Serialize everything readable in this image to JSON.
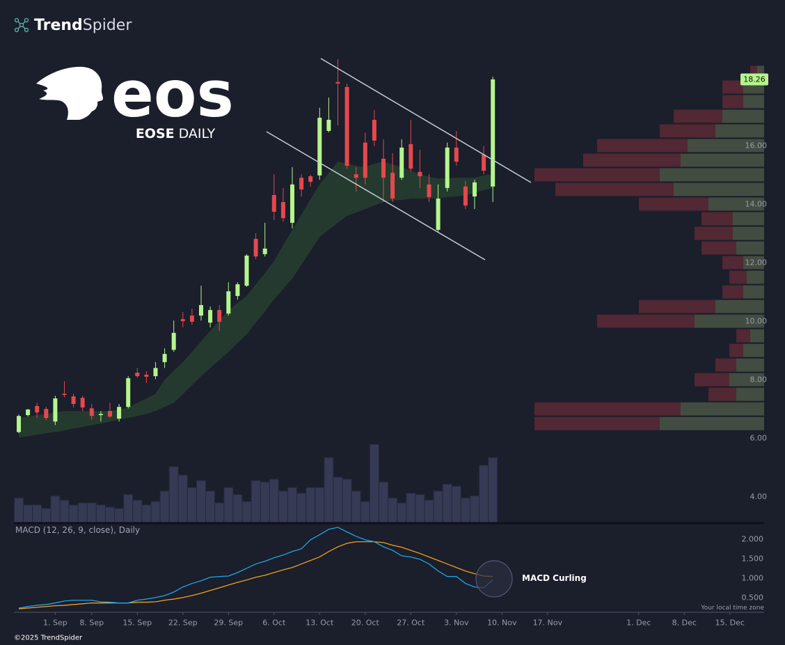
{
  "chart_data": {
    "type": "candlestick",
    "brand": {
      "bold": "Trend",
      "light": "Spider"
    },
    "logo": "eos",
    "ticker": "EOSE",
    "period": "DAILY",
    "categories": [
      null,
      null,
      null,
      null,
      "1. Sep",
      null,
      null,
      null,
      "8. Sep",
      null,
      null,
      null,
      null,
      "15. Sep",
      null,
      null,
      null,
      null,
      "22. Sep",
      null,
      null,
      null,
      null,
      "29. Sep",
      null,
      null,
      null,
      null,
      "6. Oct",
      null,
      null,
      null,
      null,
      "13. Oct",
      null,
      null,
      null,
      null,
      "20. Oct",
      null,
      null,
      null,
      null,
      "27. Oct",
      null,
      null,
      null,
      null,
      "3. Nov",
      null,
      null,
      null,
      null,
      "10. Nov",
      null,
      null,
      null,
      null,
      "17. Nov",
      null,
      null,
      null,
      null,
      null,
      null,
      null,
      null,
      null,
      "1. Dec",
      null,
      null,
      null,
      null,
      "8. Dec",
      null,
      null,
      null,
      null,
      "15. Dec",
      null,
      null
    ],
    "open": [
      6.21,
      6.79,
      7.1,
      7.0,
      6.57,
      7.52,
      7.43,
      7.38,
      7.02,
      6.79,
      6.93,
      6.67,
      7.07,
      8.24,
      8.17,
      8.12,
      8.6,
      9.02,
      10.07,
      10.19,
      10.19,
      9.95,
      10.38,
      10.26,
      10.86,
      11.21,
      12.81,
      12.29,
      14.31,
      14.07,
      13.36,
      14.9,
      14.95,
      14.98,
      16.5,
      18.17,
      18.0,
      15.02,
      16.1,
      16.88,
      15.55,
      15.07,
      14.9,
      16.05,
      15.1,
      14.67,
      13.12,
      14.55,
      15.93,
      14.6,
      14.26,
      15.69,
      14.6,
      null,
      null,
      null,
      null,
      null,
      null,
      null,
      null,
      null,
      null,
      null,
      null,
      null,
      null,
      null,
      null,
      null,
      null,
      null,
      null,
      null,
      null,
      null,
      null,
      null,
      null,
      null,
      null
    ],
    "high": [
      6.81,
      7.0,
      7.21,
      7.07,
      7.45,
      7.95,
      7.52,
      7.45,
      7.17,
      6.93,
      7.21,
      7.17,
      8.12,
      8.4,
      8.29,
      8.6,
      9.07,
      10.02,
      10.31,
      10.43,
      11.21,
      10.5,
      10.55,
      11.33,
      11.33,
      12.29,
      13.0,
      13.36,
      15.02,
      14.55,
      15.26,
      15.02,
      15.0,
      17.29,
      17.64,
      18.95,
      18.12,
      15.26,
      16.45,
      17.21,
      16.21,
      15.74,
      16.21,
      16.88,
      15.86,
      15.02,
      14.67,
      16.1,
      16.5,
      14.79,
      14.83,
      15.98,
      18.35,
      null,
      null,
      null,
      null,
      null,
      null,
      null,
      null,
      null,
      null,
      null,
      null,
      null,
      null,
      null,
      null,
      null,
      null,
      null,
      null,
      null,
      null,
      null,
      null,
      null,
      null,
      null,
      null
    ],
    "low": [
      6.17,
      6.74,
      6.69,
      6.62,
      6.45,
      7.4,
      7.05,
      6.93,
      6.64,
      6.57,
      6.69,
      6.57,
      7.02,
      8.07,
      7.88,
      8.02,
      8.4,
      8.95,
      9.79,
      9.88,
      10.02,
      9.79,
      9.67,
      10.19,
      10.74,
      11.17,
      12.12,
      12.21,
      13.45,
      13.4,
      13.17,
      14.26,
      14.6,
      14.83,
      16.45,
      16.69,
      15.21,
      14.43,
      14.67,
      15.98,
      14.07,
      14.07,
      14.83,
      15.12,
      14.55,
      14.07,
      13.05,
      14.43,
      15.31,
      13.83,
      13.83,
      15.02,
      14.07,
      null,
      null,
      null,
      null,
      null,
      null,
      null,
      null,
      null,
      null,
      null,
      null,
      null,
      null,
      null,
      null,
      null,
      null,
      null,
      null,
      null,
      null,
      null,
      null,
      null,
      null,
      null,
      null
    ],
    "close": [
      6.76,
      6.98,
      6.88,
      6.69,
      7.36,
      7.48,
      7.17,
      7.05,
      6.76,
      6.83,
      6.74,
      7.07,
      8.05,
      8.12,
      8.1,
      8.4,
      8.88,
      9.6,
      10.0,
      9.98,
      10.55,
      10.38,
      9.98,
      11.02,
      11.26,
      12.24,
      12.21,
      12.48,
      13.74,
      13.52,
      14.67,
      14.5,
      14.76,
      16.95,
      16.88,
      18.12,
      15.31,
      14.9,
      14.9,
      16.17,
      14.9,
      14.19,
      15.93,
      15.21,
      14.95,
      14.24,
      14.19,
      15.93,
      15.45,
      13.95,
      14.74,
      15.14,
      18.26,
      null,
      null,
      null,
      null,
      null,
      null,
      null,
      null,
      null,
      null,
      null,
      null,
      null,
      null,
      null,
      null,
      null,
      null,
      null,
      null,
      null,
      null,
      null,
      null,
      null,
      null,
      null,
      null
    ],
    "colors": {
      "up": "#b4f58c",
      "down": "#e5484d"
    },
    "ribbon": {
      "color": "#243a2f",
      "upper": [
        6.69,
        6.74,
        6.79,
        6.83,
        6.88,
        6.93,
        6.93,
        6.93,
        6.93,
        6.93,
        6.93,
        6.98,
        7.05,
        7.21,
        7.36,
        7.52,
        8.0,
        8.31,
        8.6,
        8.95,
        9.31,
        9.67,
        10.02,
        10.38,
        10.62,
        10.86,
        11.26,
        11.64,
        12.05,
        12.6,
        13.12,
        13.64,
        14.17,
        14.67,
        15.07,
        15.45,
        15.38,
        15.31,
        15.26,
        15.38,
        15.45,
        15.36,
        15.26,
        15.14,
        15.02,
        14.93,
        14.88,
        14.88,
        14.9,
        14.9,
        14.9,
        14.98,
        15.02,
        null,
        null,
        null,
        null,
        null,
        null,
        null,
        null,
        null,
        null,
        null,
        null,
        null,
        null,
        null,
        null,
        null,
        null,
        null,
        null,
        null,
        null,
        null,
        null,
        null,
        null,
        null,
        null
      ],
      "lower": [
        6.02,
        6.07,
        6.12,
        6.17,
        6.21,
        6.26,
        6.33,
        6.38,
        6.45,
        6.5,
        6.57,
        6.64,
        6.69,
        6.76,
        6.83,
        6.93,
        7.07,
        7.21,
        7.5,
        7.81,
        8.12,
        8.4,
        8.67,
        8.95,
        9.26,
        9.55,
        9.95,
        10.33,
        10.74,
        11.1,
        11.45,
        11.93,
        12.4,
        12.88,
        13.12,
        13.36,
        13.6,
        13.71,
        13.83,
        13.95,
        14.07,
        14.12,
        14.14,
        14.19,
        14.19,
        14.19,
        14.19,
        14.24,
        14.26,
        14.31,
        14.38,
        14.48,
        14.55,
        null,
        null,
        null,
        null,
        null,
        null,
        null,
        null,
        null,
        null,
        null,
        null,
        null,
        null,
        null,
        null,
        null,
        null,
        null,
        null,
        null,
        null,
        null,
        null,
        null,
        null,
        null,
        null
      ]
    },
    "volume": [
      35,
      25,
      25,
      20,
      38,
      32,
      25,
      28,
      28,
      25,
      22,
      20,
      40,
      32,
      25,
      30,
      45,
      80,
      68,
      50,
      60,
      45,
      28,
      50,
      40,
      30,
      60,
      58,
      62,
      45,
      50,
      42,
      50,
      50,
      93,
      65,
      62,
      45,
      30,
      112,
      58,
      35,
      28,
      42,
      40,
      32,
      45,
      55,
      52,
      35,
      38,
      82,
      93,
      null,
      null,
      null,
      null,
      null,
      null,
      null,
      null,
      null,
      null,
      null,
      null,
      null,
      null,
      null,
      null,
      null,
      null,
      null,
      null,
      null,
      null,
      null,
      null,
      null,
      null,
      null,
      null
    ],
    "volume_color": "#363a55",
    "volume_profile": {
      "up_color": "#4a5545",
      "down_color": "#5a2a35",
      "prices": [
        6.5,
        7,
        7.5,
        8,
        8.5,
        9,
        9.5,
        10,
        10.5,
        11,
        11.5,
        12,
        12.5,
        13,
        13.5,
        14,
        14.5,
        15,
        15.5,
        16,
        16.5,
        17,
        17.5,
        18,
        18.5
      ],
      "up": [
        150,
        120,
        40,
        50,
        40,
        30,
        20,
        100,
        70,
        30,
        25,
        30,
        40,
        45,
        45,
        80,
        130,
        150,
        120,
        110,
        70,
        60,
        30,
        30,
        10
      ],
      "down": [
        180,
        210,
        40,
        50,
        30,
        20,
        20,
        140,
        110,
        30,
        25,
        30,
        50,
        55,
        45,
        100,
        170,
        180,
        140,
        130,
        80,
        70,
        30,
        30,
        10
      ]
    },
    "ylim": [
      3.1,
      18.95
    ],
    "yticks": [
      {
        "value": 4,
        "label": "4.00"
      },
      {
        "value": 6,
        "label": "6.00"
      },
      {
        "value": 8,
        "label": "8.00"
      },
      {
        "value": 10,
        "label": "10.00"
      },
      {
        "value": 12,
        "label": "12.00"
      },
      {
        "value": 14,
        "label": "14.00"
      },
      {
        "value": 16,
        "label": "16.00"
      }
    ],
    "macd": {
      "type": "line",
      "title": "MACD (12, 26, 9, close), Daily",
      "annotation": "MACD Curling",
      "color": "#1ea7e8",
      "signal_color": "#f0a020",
      "values": [
        0.23,
        0.27,
        0.3,
        0.32,
        0.36,
        0.41,
        0.43,
        0.43,
        0.43,
        0.39,
        0.38,
        0.36,
        0.36,
        0.43,
        0.46,
        0.5,
        0.55,
        0.64,
        0.77,
        0.86,
        0.93,
        1.02,
        1.04,
        1.05,
        1.14,
        1.25,
        1.36,
        1.43,
        1.52,
        1.59,
        1.68,
        1.75,
        1.98,
        2.11,
        2.25,
        2.3,
        2.18,
        2.07,
        1.98,
        1.93,
        1.8,
        1.71,
        1.57,
        1.54,
        1.48,
        1.36,
        1.18,
        1.04,
        1.04,
        0.86,
        0.77,
        0.75,
        0.96,
        null,
        null,
        null,
        null,
        null,
        null,
        null,
        null,
        null,
        null,
        null,
        null,
        null,
        null,
        null,
        null,
        null,
        null,
        null,
        null,
        null,
        null,
        null,
        null,
        null,
        null,
        null,
        null
      ],
      "signal": [
        0.21,
        0.23,
        0.25,
        0.27,
        0.29,
        0.3,
        0.32,
        0.34,
        0.36,
        0.36,
        0.36,
        0.36,
        0.36,
        0.38,
        0.38,
        0.39,
        0.43,
        0.46,
        0.5,
        0.55,
        0.61,
        0.68,
        0.75,
        0.82,
        0.89,
        0.95,
        1.02,
        1.07,
        1.14,
        1.21,
        1.27,
        1.36,
        1.45,
        1.54,
        1.68,
        1.8,
        1.89,
        1.93,
        1.93,
        1.93,
        1.91,
        1.84,
        1.79,
        1.71,
        1.63,
        1.54,
        1.45,
        1.36,
        1.27,
        1.18,
        1.11,
        1.05,
        1.04,
        null,
        null,
        null,
        null,
        null,
        null,
        null,
        null,
        null,
        null,
        null,
        null,
        null,
        null,
        null,
        null,
        null,
        null,
        null,
        null,
        null,
        null,
        null,
        null,
        null,
        null,
        null,
        null
      ],
      "ylim": [
        0.14,
        2.39
      ],
      "yticks": [
        {
          "value": 0.5,
          "label": "0.500"
        },
        {
          "value": 1,
          "label": "1.000"
        },
        {
          "value": 1.5,
          "label": "1.500"
        },
        {
          "value": 2,
          "label": "2.000"
        }
      ]
    },
    "timezone_note": "Your local time zone",
    "copyright": "©2025 TrendSpider"
  }
}
